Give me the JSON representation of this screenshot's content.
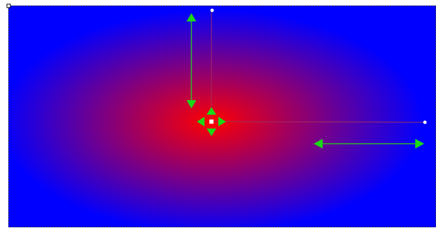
{
  "canvas": {
    "selected_object": "rectangle",
    "fill": "radial-gradient",
    "gradient_inner_color": "#ff0000",
    "gradient_outer_color": "#0000ff",
    "handle_color": "#19d919",
    "handle_line_color": "#2db82d",
    "guide_line_color": "#c03030",
    "icons": [
      "selection-corner-icon",
      "gradient-center-handle-icon",
      "gradient-move-arrows-icon",
      "vertical-radius-arrow-icon",
      "horizontal-radius-arrow-icon",
      "radius-endpoint-handle-icon"
    ]
  }
}
